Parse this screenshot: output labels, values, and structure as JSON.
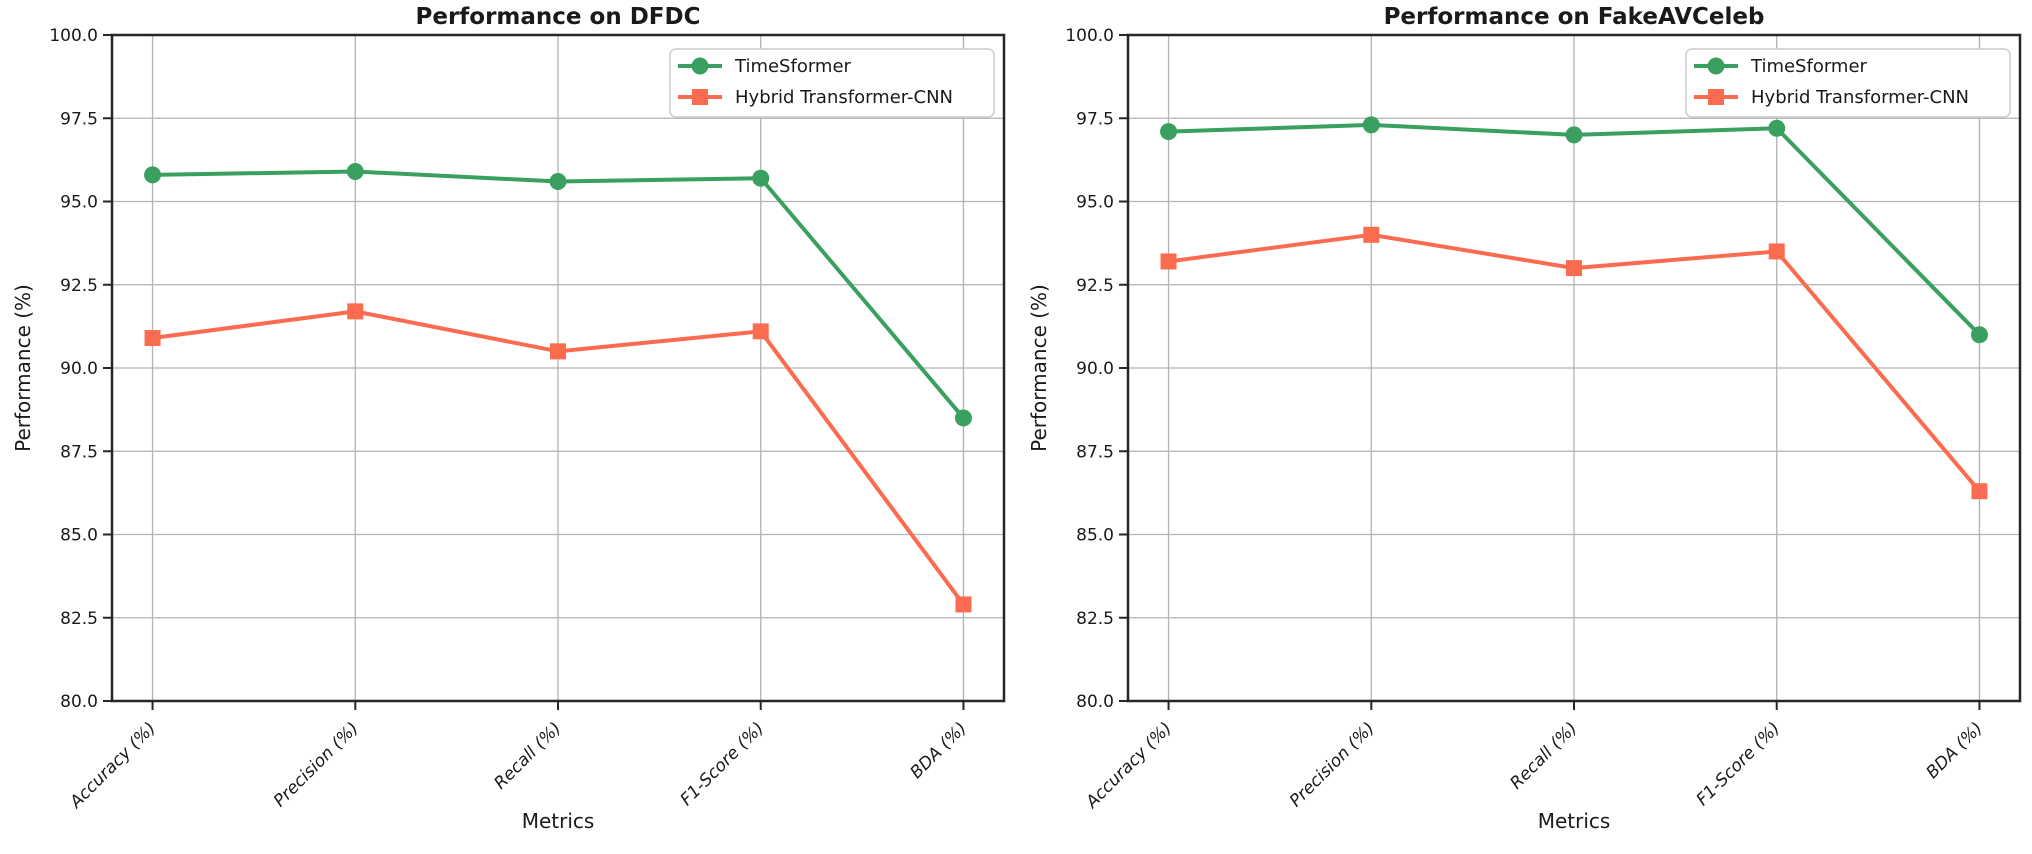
{
  "figure": {
    "background": "#ffffff",
    "grid_color": "#b3b3b3",
    "spine_color": "#262626",
    "text_color": "#1a1a1a",
    "legend_border_color": "#cccccc",
    "legend_background": "#ffffff"
  },
  "chart_data": [
    {
      "id": "dfdc",
      "type": "line",
      "title": "Performance on DFDC",
      "xlabel": "Metrics",
      "ylabel": "Performance (%)",
      "ylim": [
        80.0,
        100.0
      ],
      "ytick_step": 2.5,
      "yticks": [
        "80.0",
        "82.5",
        "85.0",
        "87.5",
        "90.0",
        "92.5",
        "95.0",
        "97.5",
        "100.0"
      ],
      "grid": true,
      "legend_position": "upper right",
      "categories": [
        "Accuracy (%)",
        "Precision (%)",
        "Recall (%)",
        "F1-Score (%)",
        "BDA (%)"
      ],
      "series": [
        {
          "name": "TimeSformer",
          "color": "#3aa05f",
          "marker": "circle",
          "values": [
            95.8,
            95.9,
            95.6,
            95.7,
            88.5
          ]
        },
        {
          "name": "Hybrid Transformer-CNN",
          "color": "#fb6b4f",
          "marker": "square",
          "values": [
            90.9,
            91.7,
            90.5,
            91.1,
            82.9
          ]
        }
      ]
    },
    {
      "id": "fakeavceleb",
      "type": "line",
      "title": "Performance on FakeAVCeleb",
      "xlabel": "Metrics",
      "ylabel": "Performance (%)",
      "ylim": [
        80.0,
        100.0
      ],
      "ytick_step": 2.5,
      "yticks": [
        "80.0",
        "82.5",
        "85.0",
        "87.5",
        "90.0",
        "92.5",
        "95.0",
        "97.5",
        "100.0"
      ],
      "grid": true,
      "legend_position": "upper right",
      "categories": [
        "Accuracy (%)",
        "Precision (%)",
        "Recall (%)",
        "F1-Score (%)",
        "BDA (%)"
      ],
      "series": [
        {
          "name": "TimeSformer",
          "color": "#3aa05f",
          "marker": "circle",
          "values": [
            97.1,
            97.3,
            97.0,
            97.2,
            91.0
          ]
        },
        {
          "name": "Hybrid Transformer-CNN",
          "color": "#fb6b4f",
          "marker": "square",
          "values": [
            93.2,
            94.0,
            93.0,
            93.5,
            86.3
          ]
        }
      ]
    }
  ]
}
